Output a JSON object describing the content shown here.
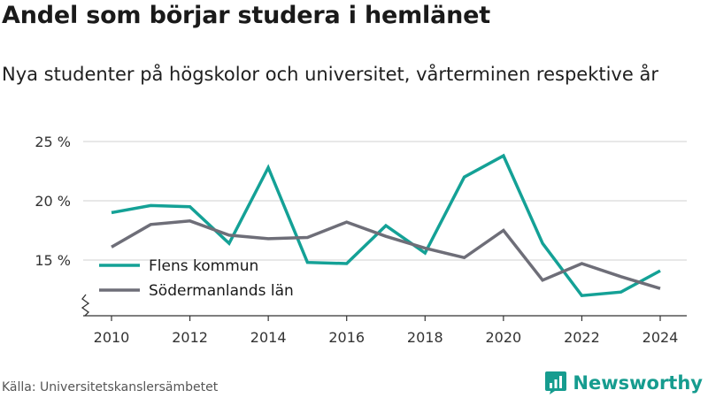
{
  "title": "Andel som börjar studera i hemlänet",
  "subtitle": "Nya studenter på högskolor och universitet, vårterminen respektive år",
  "source": "Källa: Universitetskanslersämbetet",
  "brand": {
    "name": "Newsworthy",
    "icon": "newsworthy-logo-icon",
    "color": "#169c8f"
  },
  "chart_data": {
    "type": "line",
    "title": "Andel som börjar studera i hemlänet",
    "subtitle": "Nya studenter på högskolor och universitet, vårterminen respektive år",
    "x": [
      2010,
      2011,
      2012,
      2013,
      2014,
      2015,
      2016,
      2017,
      2018,
      2019,
      2020,
      2021,
      2022,
      2023,
      2024
    ],
    "x_ticks": [
      2010,
      2012,
      2014,
      2016,
      2018,
      2020,
      2022,
      2024
    ],
    "x_tick_labels": [
      "2010",
      "2012",
      "2014",
      "2016",
      "2018",
      "2020",
      "2022",
      "2024"
    ],
    "y_ticks": [
      15,
      20,
      25
    ],
    "y_tick_labels": [
      "15 %",
      "20 %",
      "25 %"
    ],
    "ylim": [
      10,
      25
    ],
    "xlim": [
      2010,
      2024
    ],
    "axis_break": true,
    "grid": true,
    "legend_position": "left, inside plot",
    "series": [
      {
        "name": "Flens kommun",
        "color": "#14a196",
        "values": [
          19.0,
          19.6,
          19.5,
          16.4,
          22.8,
          14.8,
          14.7,
          17.9,
          15.6,
          22.0,
          23.8,
          16.4,
          12.0,
          12.3,
          14.1
        ]
      },
      {
        "name": "Södermanlands län",
        "color": "#6e6e78",
        "values": [
          16.1,
          18.0,
          18.3,
          17.1,
          16.8,
          16.9,
          18.2,
          17.0,
          16.0,
          15.2,
          17.5,
          13.3,
          14.7,
          13.6,
          12.6
        ]
      }
    ]
  }
}
